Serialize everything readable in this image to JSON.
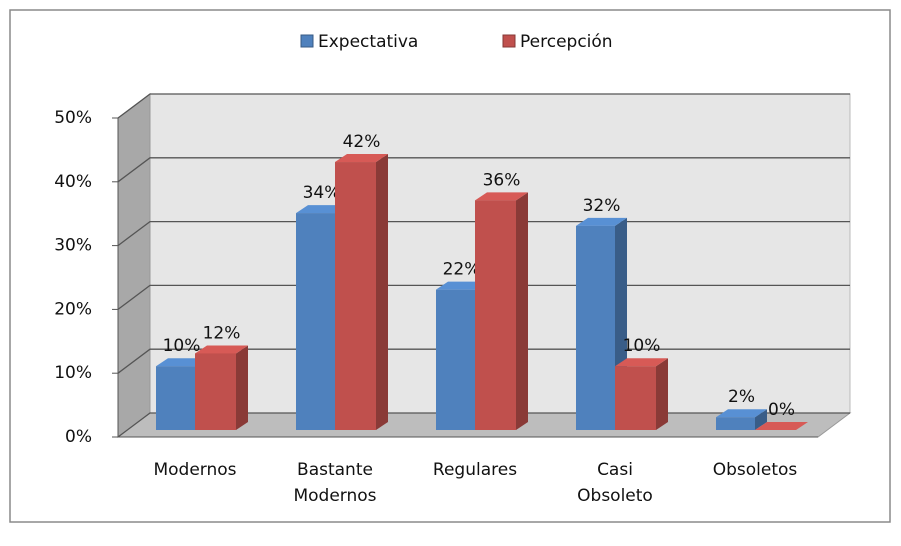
{
  "chart_data": {
    "type": "bar3d",
    "categories": [
      "Modernos",
      "Bastante Modernos",
      "Regulares",
      "Casi Obsoleto",
      "Obsoletos"
    ],
    "series": [
      {
        "name": "Expectativa",
        "color": "#4f81bd",
        "values": [
          10,
          34,
          22,
          32,
          2
        ],
        "value_labels": [
          "10%",
          "34%",
          "22%",
          "32%",
          "2%"
        ]
      },
      {
        "name": "Percepción",
        "color": "#c0504d",
        "values": [
          12,
          42,
          36,
          10,
          0
        ],
        "value_labels": [
          "12%",
          "42%",
          "36%",
          "10%",
          "0%"
        ]
      }
    ],
    "ylim": [
      0,
      50
    ],
    "yticks": [
      {
        "value": 0,
        "label": "0%"
      },
      {
        "value": 10,
        "label": "10%"
      },
      {
        "value": 20,
        "label": "20%"
      },
      {
        "value": 30,
        "label": "30%"
      },
      {
        "value": 40,
        "label": "40%"
      },
      {
        "value": 50,
        "label": "50%"
      }
    ],
    "grid": true,
    "legend": "top"
  }
}
